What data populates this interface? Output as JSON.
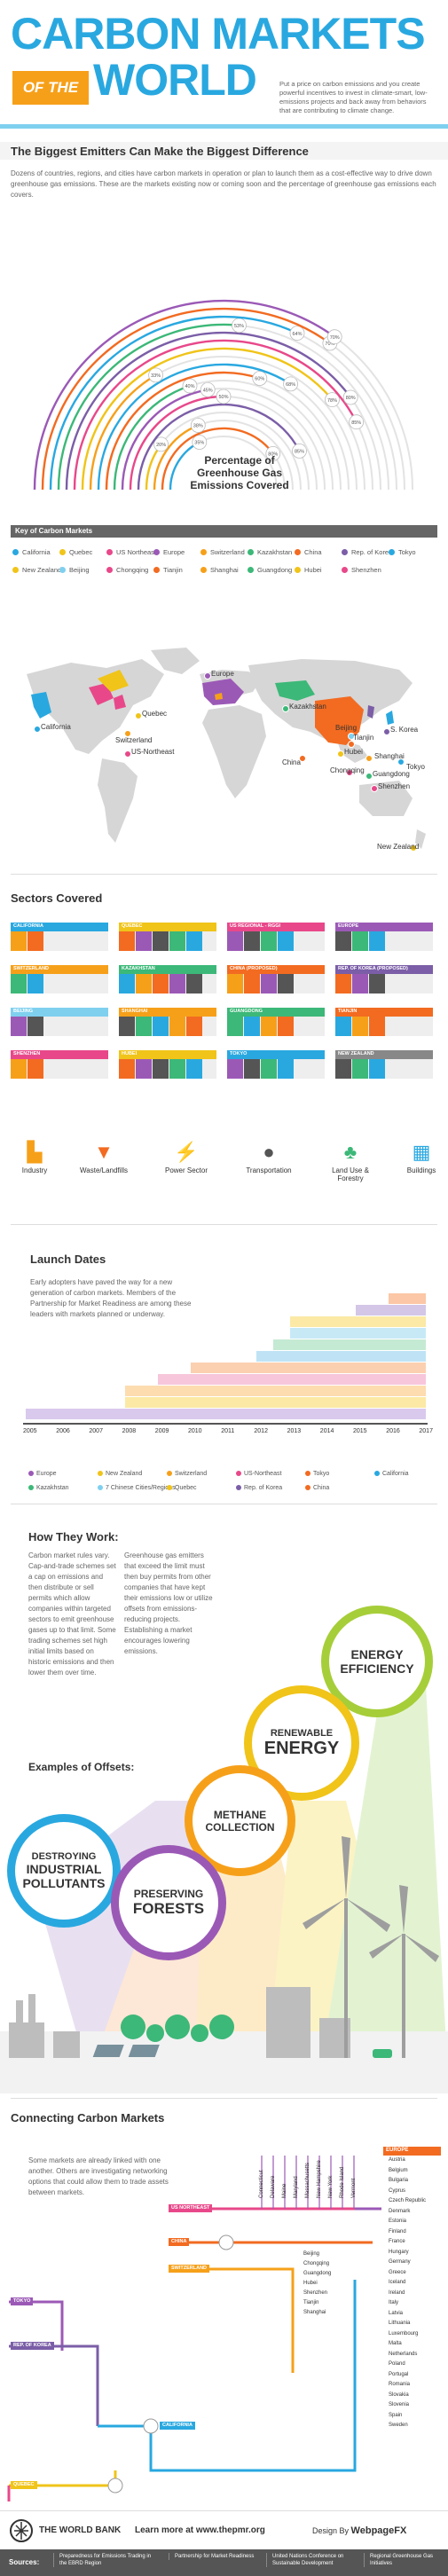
{
  "header": {
    "title_line1": "CARBON MARKETS",
    "of_the": "OF THE",
    "title_line2": "WORLD",
    "description": "Put a price on carbon emissions and you create powerful incentives to invest in climate-smart, low-emissions projects and back away from behaviors that are contributing to climate change."
  },
  "emitters": {
    "title": "The Biggest Emitters Can Make the Biggest Difference",
    "intro": "Dozens of countries, regions, and cities have carbon markets in operation or plan to launch them as a cost-effective way to drive down greenhouse gas emissions. These are the markets existing now or coming soon and the percentage of greenhouse gas emissions each covers.",
    "arc_label": "Percentage of Greenhouse Gas Emissions Covered",
    "arcs": [
      {
        "pct": "35%",
        "value": 35,
        "color": "#29a8e0"
      },
      {
        "pct": "80%",
        "value": 80,
        "color": "#f26b21"
      },
      {
        "pct": "38%",
        "value": 38,
        "color": "#f6a01a"
      },
      {
        "pct": "20%",
        "value": 20,
        "color": "#f0c419"
      },
      {
        "pct": "85%",
        "value": 85,
        "color": "#7b5ea7"
      },
      {
        "pct": "50%",
        "value": 50,
        "color": "#e8488a"
      },
      {
        "pct": "45%",
        "value": 45,
        "color": "#9b59b6"
      },
      {
        "pct": "40%",
        "value": 40,
        "color": "#3cb878"
      },
      {
        "pct": "60%",
        "value": 60,
        "color": "#f26b21"
      },
      {
        "pct": "68%",
        "value": 68,
        "color": "#29a8e0"
      },
      {
        "pct": "33%",
        "value": 33,
        "color": "#f6a01a"
      },
      {
        "pct": "78%",
        "value": 78,
        "color": "#f0c419"
      },
      {
        "pct": "85%",
        "value": 85,
        "color": "#e8488a"
      },
      {
        "pct": "80%",
        "value": 80,
        "color": "#7b5ea7"
      },
      {
        "pct": "53%",
        "value": 53,
        "color": "#3cb878"
      },
      {
        "pct": "64%",
        "value": 64,
        "color": "#29a8e0"
      },
      {
        "pct": "70%",
        "value": 70,
        "color": "#f26b21"
      },
      {
        "pct": "70%",
        "value": 70,
        "color": "#9b59b6"
      }
    ]
  },
  "key": {
    "title": "Key of Carbon Markets",
    "items": [
      {
        "label": "California",
        "color": "#29a8e0"
      },
      {
        "label": "Quebec",
        "color": "#f0c419"
      },
      {
        "label": "US Northeast",
        "color": "#e8488a"
      },
      {
        "label": "Europe",
        "color": "#9b59b6"
      },
      {
        "label": "Switzerland",
        "color": "#f6a01a"
      },
      {
        "label": "Kazakhstan",
        "color": "#3cb878"
      },
      {
        "label": "China",
        "color": "#f26b21"
      },
      {
        "label": "Rep. of Korea",
        "color": "#7b5ea7"
      },
      {
        "label": "Tokyo",
        "color": "#29a8e0"
      },
      {
        "label": "New Zealand",
        "color": "#f0c419"
      },
      {
        "label": "Beijing",
        "color": "#7fd0ef"
      },
      {
        "label": "Chongqing",
        "color": "#e8488a"
      },
      {
        "label": "Tianjin",
        "color": "#f26b21"
      },
      {
        "label": "Shanghai",
        "color": "#f6a01a"
      },
      {
        "label": "Guangdong",
        "color": "#3cb878"
      },
      {
        "label": "Hubei",
        "color": "#f0c419"
      },
      {
        "label": "Shenzhen",
        "color": "#e8488a"
      }
    ]
  },
  "map": {
    "labels": [
      "California",
      "Quebec",
      "Switzerland",
      "US-Northeast",
      "Europe",
      "Kazakhstan",
      "Beijing",
      "Tianjin",
      "S. Korea",
      "Hubei",
      "Shanghai",
      "Tokyo",
      "Chongqing",
      "Guangdong",
      "Shenzhen",
      "China",
      "New Zealand"
    ]
  },
  "sectors": {
    "title": "Sectors Covered",
    "boxes": [
      {
        "name": "CALIFORNIA",
        "color": "#29a8e0"
      },
      {
        "name": "QUEBEC",
        "color": "#f0c419"
      },
      {
        "name": "US REGIONAL - RGGI",
        "color": "#e8488a"
      },
      {
        "name": "EUROPE",
        "color": "#9b59b6"
      },
      {
        "name": "SWITZERLAND",
        "color": "#f6a01a"
      },
      {
        "name": "KAZAKHSTAN",
        "color": "#3cb878"
      },
      {
        "name": "CHINA (PROPOSED)",
        "color": "#f26b21"
      },
      {
        "name": "REP. OF KOREA (PROPOSED)",
        "color": "#7b5ea7"
      },
      {
        "name": "BEIJING",
        "color": "#7fd0ef"
      },
      {
        "name": "SHANGHAI",
        "color": "#f6a01a"
      },
      {
        "name": "GUANGDONG",
        "color": "#3cb878"
      },
      {
        "name": "TIANJIN",
        "color": "#f26b21"
      },
      {
        "name": "SHENZHEN",
        "color": "#e8488a"
      },
      {
        "name": "HUBEI",
        "color": "#f0c419"
      },
      {
        "name": "TOKYO",
        "color": "#29a8e0"
      },
      {
        "name": "NEW ZEALAND",
        "color": "#888888"
      }
    ],
    "legend": [
      {
        "label": "Industry",
        "icon": "factory-icon",
        "glyph": "▙",
        "color": "#f6a01a"
      },
      {
        "label": "Waste/Landfills",
        "icon": "trash-icon",
        "glyph": "▼",
        "color": "#f26b21"
      },
      {
        "label": "Power Sector",
        "icon": "power-tower-icon",
        "glyph": "⚡",
        "color": "#9b59b6"
      },
      {
        "label": "Transportation",
        "icon": "fuel-drop-icon",
        "glyph": "●",
        "color": "#555555"
      },
      {
        "label": "Land Use & Forestry",
        "icon": "tree-icon",
        "glyph": "♣",
        "color": "#3cb878"
      },
      {
        "label": "Buildings",
        "icon": "building-icon",
        "glyph": "▦",
        "color": "#29a8e0"
      }
    ]
  },
  "launch": {
    "title": "Launch Dates",
    "text": "Early adopters have paved the way for a new generation of carbon markets. Members of the Partnership for Market Readiness are among these leaders with markets planned or underway.",
    "years": [
      "2005",
      "2006",
      "2007",
      "2008",
      "2009",
      "2010",
      "2011",
      "2012",
      "2013",
      "2014",
      "2015",
      "2016",
      "2017"
    ],
    "legend": [
      {
        "label": "Europe",
        "color": "#9b59b6"
      },
      {
        "label": "New Zealand",
        "color": "#f0c419"
      },
      {
        "label": "Switzerland",
        "color": "#f6a01a"
      },
      {
        "label": "US-Northeast",
        "color": "#e8488a"
      },
      {
        "label": "Tokyo",
        "color": "#f26b21"
      },
      {
        "label": "California",
        "color": "#29a8e0"
      },
      {
        "label": "Kazakhstan",
        "color": "#3cb878"
      },
      {
        "label": "7 Chinese Cities/Regions",
        "color": "#7fd0ef"
      },
      {
        "label": "Quebec",
        "color": "#f0c419"
      },
      {
        "label": "Rep. of Korea",
        "color": "#7b5ea7"
      },
      {
        "label": "China",
        "color": "#f26b21"
      }
    ]
  },
  "how": {
    "title": "How They Work:",
    "col1": "Carbon market rules vary. Cap-and-trade schemes set a cap on emissions and then distribute or sell permits which allow companies within targeted sectors to emit greenhouse gases up to that limit. Some trading schemes set high initial limits based on historic emissions and then lower them over time.",
    "col2": "Greenhouse gas emitters that exceed the limit must then buy permits from other companies that have kept their emissions low or utilize offsets from emissions-reducing projects. Establishing a market encourages lowering emissions.",
    "examples_title": "Examples of Offsets:",
    "circles": [
      {
        "line1": "ENERGY",
        "line2": "EFFICIENCY"
      },
      {
        "line1": "RENEWABLE",
        "line2": "ENERGY"
      },
      {
        "line1": "METHANE",
        "line2": "COLLECTION"
      },
      {
        "line1": "DESTROYING",
        "line2": "INDUSTRIAL",
        "line3": "POLLUTANTS"
      },
      {
        "line1": "PRESERVING",
        "line2": "FORESTS"
      }
    ]
  },
  "connecting": {
    "title": "Connecting Carbon Markets",
    "text": "Some markets are already linked with one another. Others are investigating networking options that could allow them to trade assets between markets.",
    "lines": [
      "US NORTHEAST",
      "CHINA",
      "SWITZERLAND",
      "TOKYO",
      "REP. OF KOREA",
      "CALIFORNIA",
      "QUEBEC"
    ],
    "us_states": [
      "Connecticut",
      "Delaware",
      "Maine",
      "Maryland",
      "Massachusetts",
      "New Hampshire",
      "New York",
      "Rhode Island",
      "Vermont"
    ],
    "china_cities": [
      "Beijing",
      "Chongqing",
      "Guangdong",
      "Hubei",
      "Shenzhen",
      "Tianjin",
      "Shanghai"
    ],
    "europe_title": "EUROPE",
    "europe": [
      "Austria",
      "Belgium",
      "Bulgaria",
      "Cyprus",
      "Czech Republic",
      "Denmark",
      "Estonia",
      "Finland",
      "France",
      "Hungary",
      "Germany",
      "Greece",
      "Iceland",
      "Ireland",
      "Italy",
      "Latvia",
      "Lithuania",
      "Luxembourg",
      "Malta",
      "Netherlands",
      "Poland",
      "Portugal",
      "Romania",
      "Slovakia",
      "Slovenia",
      "Spain",
      "Sweden"
    ]
  },
  "footer": {
    "org": "THE WORLD BANK",
    "learn_prefix": "Learn more at ",
    "learn_url": "www.thepmr.org",
    "design_by": "Design By",
    "designer": "WebpageFX",
    "sources_label": "Sources:",
    "sources": [
      "Preparedness for Emissions Trading in the EBRD Region",
      "Partnership for Market Readiness",
      "United Nations Conference on Sustainable Development",
      "Regional Greenhouse Gas Initiatives"
    ]
  }
}
